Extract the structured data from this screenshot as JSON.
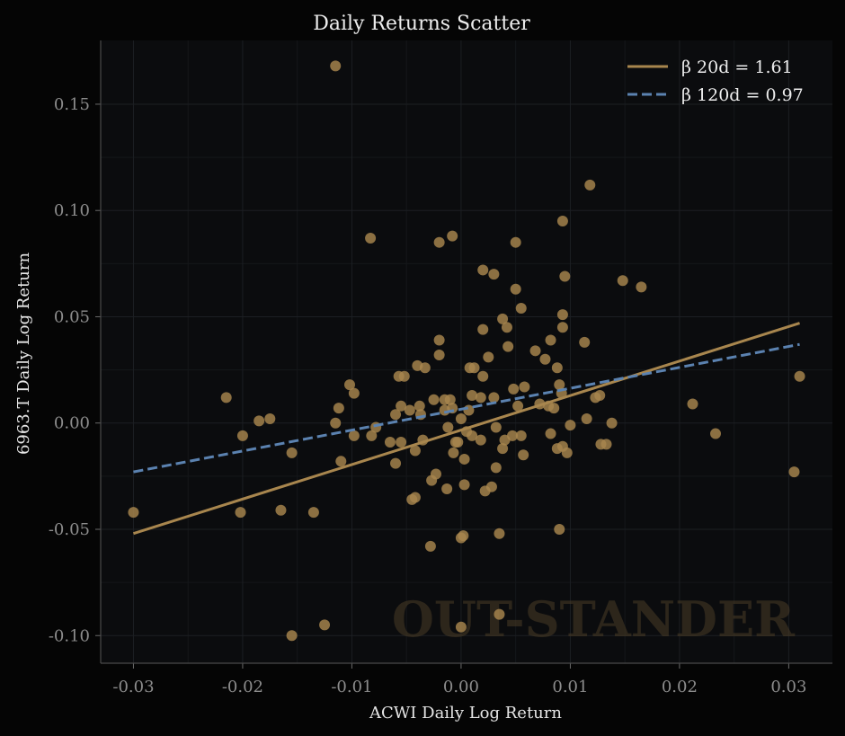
{
  "chart_data": {
    "type": "scatter",
    "title": "Daily Returns Scatter",
    "xlabel": "ACWI Daily Log Return",
    "ylabel": "6963.T Daily Log Return",
    "xlim": [
      -0.033,
      0.034
    ],
    "ylim": [
      -0.113,
      0.18
    ],
    "x_ticks": [
      -0.03,
      -0.02,
      -0.01,
      0.0,
      0.01,
      0.02,
      0.03
    ],
    "x_tick_labels": [
      "-0.03",
      "-0.02",
      "-0.01",
      "0.00",
      "0.01",
      "0.02",
      "0.03"
    ],
    "y_ticks": [
      -0.1,
      -0.05,
      0.0,
      0.05,
      0.1,
      0.15
    ],
    "y_tick_labels": [
      "-0.10",
      "-0.05",
      "0.00",
      "0.05",
      "0.10",
      "0.15"
    ],
    "grid": true,
    "legend_position": "top-right",
    "watermark": "OUT-STANDER",
    "colors": {
      "points": "#a8864e",
      "beta20": "#a8864e",
      "beta120": "#5b82b0",
      "background": "#0b0c0e"
    },
    "series": [
      {
        "name": "points",
        "points": [
          [
            -0.0115,
            0.168
          ],
          [
            -0.03,
            -0.042
          ],
          [
            -0.0215,
            0.012
          ],
          [
            -0.02,
            -0.006
          ],
          [
            -0.0202,
            -0.042
          ],
          [
            -0.0185,
            0.001
          ],
          [
            -0.0175,
            0.002
          ],
          [
            -0.0165,
            -0.041
          ],
          [
            -0.0155,
            -0.014
          ],
          [
            -0.0155,
            -0.1
          ],
          [
            -0.0135,
            -0.042
          ],
          [
            -0.0125,
            -0.095
          ],
          [
            -0.0115,
            0.0
          ],
          [
            -0.0112,
            0.007
          ],
          [
            -0.011,
            -0.018
          ],
          [
            -0.0102,
            0.018
          ],
          [
            -0.0098,
            0.014
          ],
          [
            -0.0098,
            -0.006
          ],
          [
            -0.0083,
            0.087
          ],
          [
            -0.0082,
            -0.006
          ],
          [
            -0.0078,
            -0.002
          ],
          [
            -0.0065,
            -0.009
          ],
          [
            -0.006,
            0.004
          ],
          [
            -0.006,
            -0.019
          ],
          [
            -0.0057,
            0.022
          ],
          [
            -0.0055,
            0.008
          ],
          [
            -0.0055,
            -0.009
          ],
          [
            -0.0052,
            0.022
          ],
          [
            -0.0047,
            0.006
          ],
          [
            -0.0045,
            -0.036
          ],
          [
            -0.0042,
            -0.035
          ],
          [
            -0.0042,
            -0.013
          ],
          [
            -0.004,
            0.027
          ],
          [
            -0.0038,
            0.008
          ],
          [
            -0.0037,
            0.004
          ],
          [
            -0.0035,
            -0.008
          ],
          [
            -0.0033,
            0.026
          ],
          [
            -0.0028,
            -0.058
          ],
          [
            -0.0027,
            -0.027
          ],
          [
            -0.0025,
            0.011
          ],
          [
            -0.0023,
            -0.024
          ],
          [
            -0.002,
            0.085
          ],
          [
            -0.002,
            0.039
          ],
          [
            -0.002,
            0.032
          ],
          [
            -0.0015,
            0.011
          ],
          [
            -0.0015,
            0.006
          ],
          [
            -0.0013,
            -0.031
          ],
          [
            -0.0012,
            -0.002
          ],
          [
            -0.001,
            0.011
          ],
          [
            -0.0008,
            0.088
          ],
          [
            -0.0008,
            0.007
          ],
          [
            -0.0007,
            -0.014
          ],
          [
            -0.0005,
            -0.009
          ],
          [
            -0.0003,
            -0.009
          ],
          [
            0.0,
            0.002
          ],
          [
            0.0,
            -0.054
          ],
          [
            0.0,
            -0.096
          ],
          [
            0.0002,
            -0.053
          ],
          [
            0.0003,
            -0.029
          ],
          [
            0.0003,
            -0.017
          ],
          [
            0.0005,
            -0.004
          ],
          [
            0.0007,
            0.006
          ],
          [
            0.0008,
            0.026
          ],
          [
            0.001,
            0.013
          ],
          [
            0.001,
            -0.006
          ],
          [
            0.0012,
            0.026
          ],
          [
            0.0018,
            0.012
          ],
          [
            0.0018,
            -0.008
          ],
          [
            0.002,
            0.072
          ],
          [
            0.002,
            0.044
          ],
          [
            0.002,
            0.022
          ],
          [
            0.0022,
            -0.032
          ],
          [
            0.0025,
            0.031
          ],
          [
            0.0028,
            -0.03
          ],
          [
            0.003,
            0.012
          ],
          [
            0.003,
            0.07
          ],
          [
            0.0032,
            -0.021
          ],
          [
            0.0032,
            -0.002
          ],
          [
            0.0035,
            -0.052
          ],
          [
            0.0035,
            -0.09
          ],
          [
            0.0038,
            0.049
          ],
          [
            0.0038,
            -0.012
          ],
          [
            0.004,
            -0.008
          ],
          [
            0.0042,
            0.045
          ],
          [
            0.0043,
            0.036
          ],
          [
            0.0047,
            -0.006
          ],
          [
            0.0048,
            0.016
          ],
          [
            0.005,
            0.085
          ],
          [
            0.005,
            0.063
          ],
          [
            0.0052,
            0.008
          ],
          [
            0.0055,
            -0.006
          ],
          [
            0.0055,
            0.054
          ],
          [
            0.0057,
            -0.015
          ],
          [
            0.0058,
            0.017
          ],
          [
            0.0068,
            0.034
          ],
          [
            0.0072,
            0.009
          ],
          [
            0.0077,
            0.03
          ],
          [
            0.008,
            0.008
          ],
          [
            0.0082,
            -0.005
          ],
          [
            0.0082,
            0.039
          ],
          [
            0.0085,
            0.007
          ],
          [
            0.0088,
            -0.012
          ],
          [
            0.0088,
            0.026
          ],
          [
            0.009,
            0.018
          ],
          [
            0.009,
            -0.05
          ],
          [
            0.0092,
            0.014
          ],
          [
            0.0093,
            0.095
          ],
          [
            0.0093,
            0.051
          ],
          [
            0.0093,
            0.045
          ],
          [
            0.0093,
            -0.011
          ],
          [
            0.0095,
            0.069
          ],
          [
            0.0097,
            -0.014
          ],
          [
            0.01,
            -0.001
          ],
          [
            0.0113,
            0.038
          ],
          [
            0.0115,
            0.002
          ],
          [
            0.0118,
            0.112
          ],
          [
            0.0123,
            0.012
          ],
          [
            0.0127,
            0.013
          ],
          [
            0.0128,
            -0.01
          ],
          [
            0.0133,
            -0.01
          ],
          [
            0.0138,
            0.0
          ],
          [
            0.0148,
            0.067
          ],
          [
            0.0165,
            0.064
          ],
          [
            0.0212,
            0.009
          ],
          [
            0.0233,
            -0.005
          ],
          [
            0.0305,
            -0.023
          ],
          [
            0.031,
            0.022
          ]
        ]
      }
    ],
    "lines": [
      {
        "name": "β 20d = 1.61",
        "style": "solid",
        "x": [
          -0.03,
          0.031
        ],
        "y": [
          -0.052,
          0.047
        ]
      },
      {
        "name": "β 120d = 0.97",
        "style": "dashed",
        "x": [
          -0.03,
          0.031
        ],
        "y": [
          -0.023,
          0.037
        ]
      }
    ]
  }
}
